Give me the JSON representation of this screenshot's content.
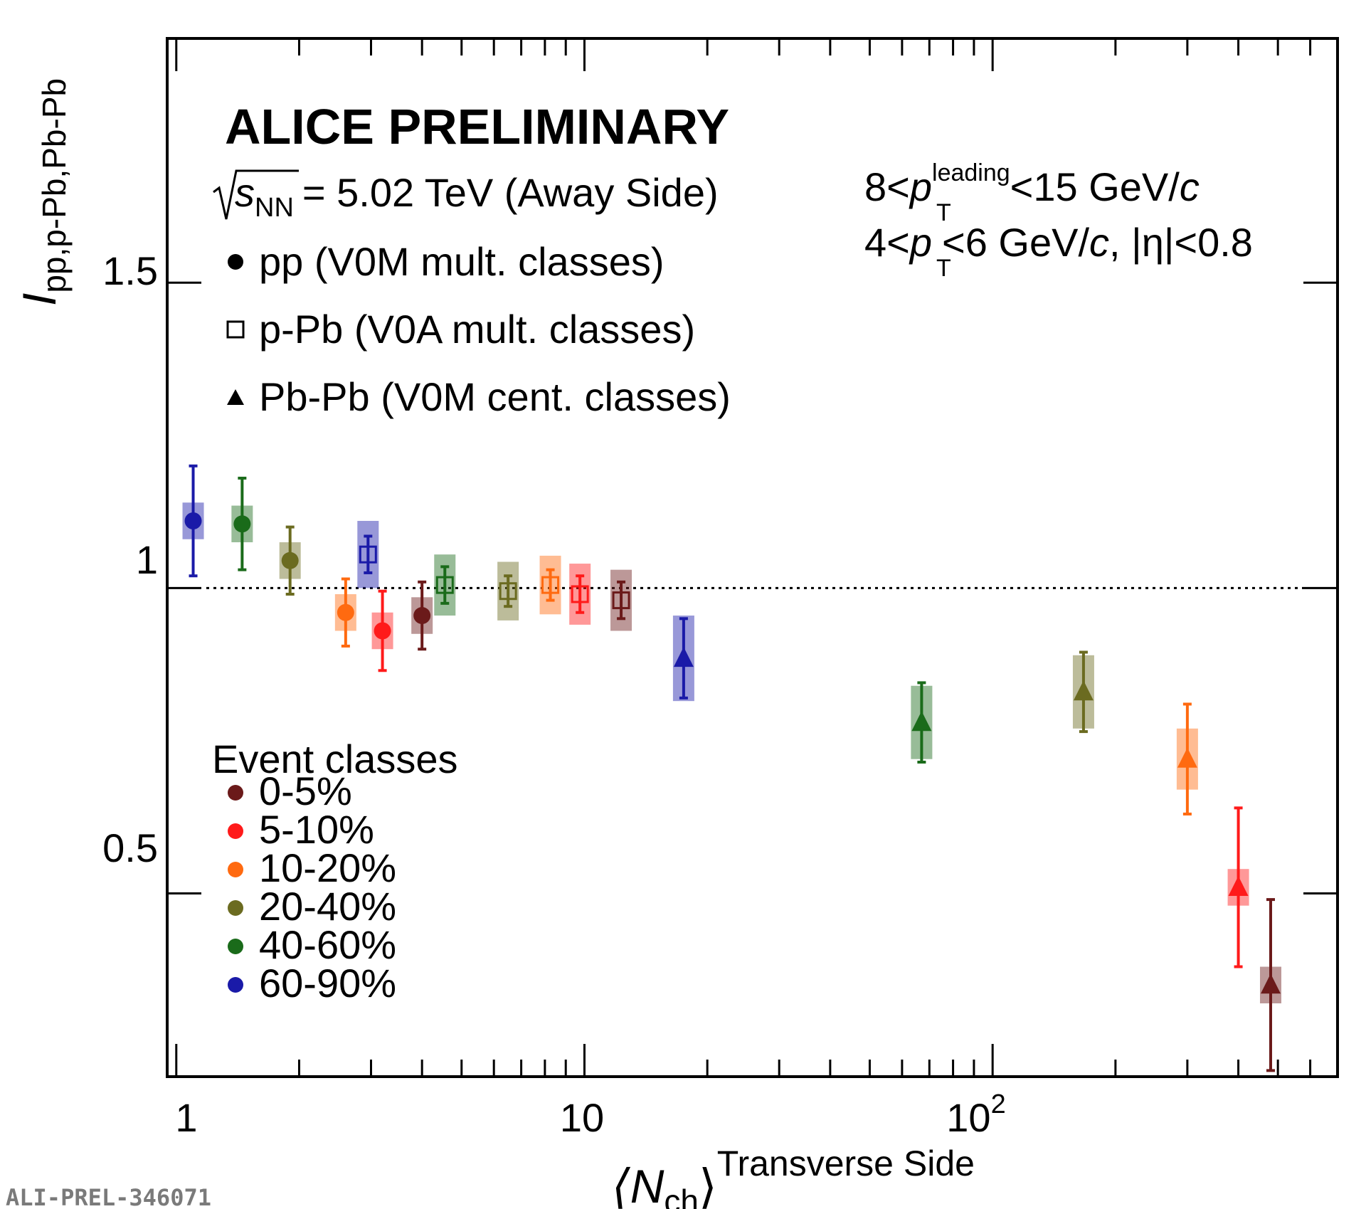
{
  "chart_data": {
    "type": "scatter",
    "x_scale": "log",
    "xlim": [
      0.95,
      700
    ],
    "ylim": [
      0.2,
      1.9
    ],
    "reference_line": 1,
    "x_tick_labels": [
      "1",
      "10",
      "10",
      "2"
    ],
    "y_tick_labels": [
      "0.5",
      "1",
      "1.5"
    ],
    "xlabel": {
      "base": "⟨N",
      "sub": "ch",
      "suffix": "⟩",
      "sup": "Transverse Side"
    },
    "ylabel": {
      "base": "I",
      "sub": "pp,p-Pb,Pb-Pb"
    },
    "title": "ALICE PRELIMINARY",
    "energy": {
      "s": "s",
      "sub": "NN",
      "rest": "= 5.02 TeV (Away Side)"
    },
    "kinematics": [
      {
        "a": "8<",
        "p": "p",
        "sub": "T",
        "sup": "leading",
        "b": "<15 GeV/",
        "c": "c",
        "d": ""
      },
      {
        "a": "4<",
        "p": "p",
        "sub": "T",
        "sup": "",
        "b": "<6 GeV/",
        "c": "c",
        "d": ", |η|<0.8"
      }
    ],
    "marker_legend": [
      {
        "marker": "circle",
        "label": "pp (V0M mult. classes)"
      },
      {
        "marker": "open-square",
        "label": "p-Pb (V0A mult. classes)"
      },
      {
        "marker": "triangle",
        "label": "Pb-Pb (V0M cent. classes)"
      }
    ],
    "color_legend_title": "Event classes",
    "color_legend": [
      {
        "label": "0-5%",
        "color": "#6b1a1a"
      },
      {
        "label": "5-10%",
        "color": "#ff1a1a"
      },
      {
        "label": "10-20%",
        "color": "#ff6a10"
      },
      {
        "label": "20-40%",
        "color": "#6b6b20"
      },
      {
        "label": "40-60%",
        "color": "#1a6b1a"
      },
      {
        "label": "60-90%",
        "color": "#1a1aa8"
      }
    ],
    "series": [
      {
        "name": "pp (V0M mult. classes)",
        "marker": "circle",
        "points": [
          {
            "class": "60-90%",
            "x": 1.1,
            "y": 1.11,
            "stat": 0.09,
            "sys": 0.03
          },
          {
            "class": "40-60%",
            "x": 1.45,
            "y": 1.105,
            "stat": 0.075,
            "sys": 0.03
          },
          {
            "class": "20-40%",
            "x": 1.9,
            "y": 1.045,
            "stat": 0.055,
            "sys": 0.03
          },
          {
            "class": "10-20%",
            "x": 2.6,
            "y": 0.96,
            "stat": 0.055,
            "sys": 0.03
          },
          {
            "class": "5-10%",
            "x": 3.2,
            "y": 0.93,
            "stat": 0.065,
            "sys": 0.03
          },
          {
            "class": "0-5%",
            "x": 4.0,
            "y": 0.955,
            "stat": 0.055,
            "sys": 0.03
          }
        ]
      },
      {
        "name": "p-Pb (V0A mult. classes)",
        "marker": "open-square",
        "points": [
          {
            "class": "60-90%",
            "x": 2.95,
            "y": 1.055,
            "stat": 0.03,
            "sys": 0.055
          },
          {
            "class": "40-60%",
            "x": 4.55,
            "y": 1.005,
            "stat": 0.03,
            "sys": 0.05
          },
          {
            "class": "20-40%",
            "x": 6.5,
            "y": 0.995,
            "stat": 0.025,
            "sys": 0.048
          },
          {
            "class": "10-20%",
            "x": 8.25,
            "y": 1.005,
            "stat": 0.025,
            "sys": 0.048
          },
          {
            "class": "5-10%",
            "x": 9.75,
            "y": 0.99,
            "stat": 0.03,
            "sys": 0.05
          },
          {
            "class": "0-5%",
            "x": 12.3,
            "y": 0.98,
            "stat": 0.03,
            "sys": 0.05
          }
        ]
      },
      {
        "name": "Pb-Pb (V0M cent. classes)",
        "marker": "triangle",
        "points": [
          {
            "class": "60-90%",
            "x": 17.5,
            "y": 0.885,
            "stat": 0.065,
            "sys": 0.07
          },
          {
            "class": "40-60%",
            "x": 67,
            "y": 0.78,
            "stat": 0.065,
            "sys": 0.06
          },
          {
            "class": "20-40%",
            "x": 167,
            "y": 0.83,
            "stat": 0.065,
            "sys": 0.06
          },
          {
            "class": "10-20%",
            "x": 300,
            "y": 0.72,
            "stat": 0.09,
            "sys": 0.05
          },
          {
            "class": "5-10%",
            "x": 400,
            "y": 0.51,
            "stat": 0.13,
            "sys": 0.03
          },
          {
            "class": "0-5%",
            "x": 480,
            "y": 0.35,
            "stat": 0.14,
            "sys": 0.03
          }
        ]
      }
    ]
  },
  "footer_id": "ALI-PREL-346071"
}
